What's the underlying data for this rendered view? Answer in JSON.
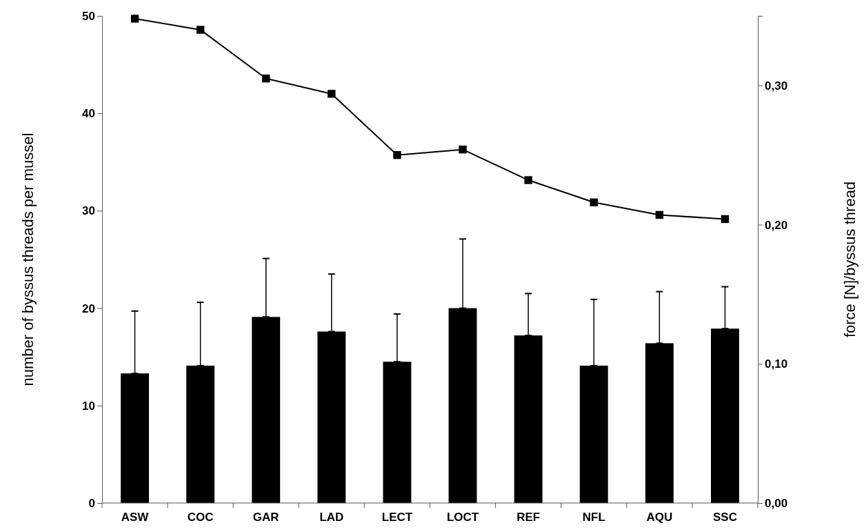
{
  "chart_data": {
    "type": "bar",
    "categories": [
      "ASW",
      "COC",
      "GAR",
      "LAD",
      "LECT",
      "LOCT",
      "REF",
      "NFL",
      "AQU",
      "SSC"
    ],
    "ylabel": "number of byssus threads per mussel",
    "y2label": "force [N]/byssus thread",
    "ylim": [
      0,
      50
    ],
    "yticks": [
      0,
      10,
      20,
      30,
      40,
      50
    ],
    "y2lim": [
      0,
      0.35
    ],
    "y2ticks": [
      {
        "value": 0,
        "label": "0,00"
      },
      {
        "value": 0.1,
        "label": "0,10"
      },
      {
        "value": 0.2,
        "label": "0,20"
      },
      {
        "value": 0.3,
        "label": "0,30"
      }
    ],
    "grid": false,
    "series": [
      {
        "color": "#000000",
        "values": [
          13.3,
          14.1,
          19.1,
          17.6,
          14.5,
          20.0,
          17.2,
          14.1,
          16.4,
          17.9
        ],
        "errors": [
          [
            13.3,
            19.7
          ],
          [
            14.1,
            20.6
          ],
          [
            19.1,
            25.1
          ],
          [
            17.6,
            23.5
          ],
          [
            14.5,
            19.4
          ],
          [
            20.0,
            27.1
          ],
          [
            17.2,
            21.5
          ],
          [
            14.1,
            20.9
          ],
          [
            16.4,
            21.7
          ],
          [
            17.9,
            22.2
          ]
        ]
      },
      {
        "type": "line",
        "axis": "y2",
        "color": "#000000",
        "marker": "square",
        "line_style": "solid",
        "values": [
          0.348,
          0.34,
          0.305,
          0.294,
          0.25,
          0.254,
          0.232,
          0.216,
          0.207,
          0.204
        ]
      }
    ]
  }
}
